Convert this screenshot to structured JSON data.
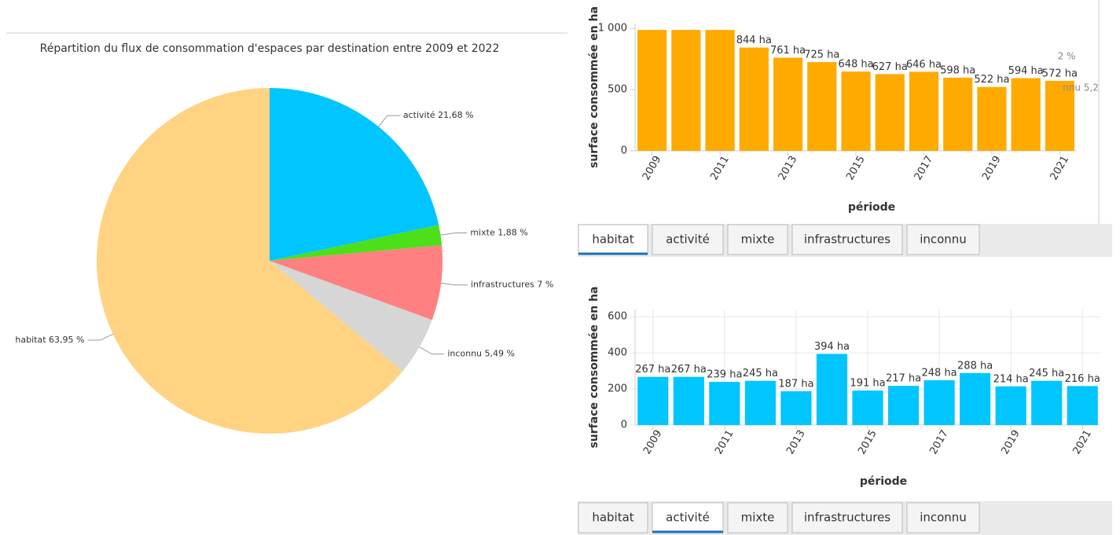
{
  "chart_data": [
    {
      "type": "pie",
      "title": "Répartition du flux de consommation d'espaces par destination entre 2009 et 2022",
      "categories": [
        "activité",
        "mixte",
        "infrastructures",
        "inconnu",
        "habitat"
      ],
      "values": [
        21.68,
        1.88,
        7,
        5.49,
        63.95
      ],
      "value_labels": [
        "21,68 %",
        "1,88 %",
        "7 %",
        "5,49 %",
        "63,95 %"
      ],
      "colors": [
        "#00c5ff",
        "#4ddf1a",
        "#ff8080",
        "#d6d6d6",
        "#ffd382"
      ]
    },
    {
      "type": "bar",
      "ylabel": "surface consommée en ha",
      "xlabel": "période",
      "categories": [
        "2009",
        null,
        "2011",
        null,
        "2013",
        null,
        "2015",
        null,
        "2017",
        null,
        "2019",
        null,
        "2021"
      ],
      "values": [
        988,
        988,
        988,
        844,
        761,
        725,
        648,
        627,
        646,
        598,
        522,
        594,
        572
      ],
      "value_labels": [
        null,
        null,
        null,
        "844 ha",
        "761 ha",
        "725 ha",
        "648 ha",
        "627 ha",
        "646 ha",
        "598 ha",
        "522 ha",
        "594 ha",
        "572 ha"
      ],
      "color": "#ffaa00",
      "ylim": [
        0,
        1040
      ],
      "yticks": [
        0,
        500,
        {
          "value": 1000,
          "label": "1 000"
        }
      ],
      "annotations": [
        "2 %",
        "nnu 5,2"
      ],
      "tabs": [
        "habitat",
        "activité",
        "mixte",
        "infrastructures",
        "inconnu"
      ],
      "active_tab": 0
    },
    {
      "type": "bar",
      "ylabel": "surface consommée en ha",
      "xlabel": "période",
      "categories": [
        "2009",
        null,
        "2011",
        null,
        "2013",
        null,
        "2015",
        null,
        "2017",
        null,
        "2019",
        null,
        "2021"
      ],
      "values": [
        267,
        267,
        239,
        245,
        187,
        394,
        191,
        217,
        248,
        288,
        214,
        245,
        216
      ],
      "value_labels": [
        "267 ha",
        "267 ha",
        "239 ha",
        "245 ha",
        "187 ha",
        "394 ha",
        "191 ha",
        "217 ha",
        "248 ha",
        "288 ha",
        "214 ha",
        "245 ha",
        "216 ha"
      ],
      "color": "#00c5ff",
      "ylim": [
        0,
        640
      ],
      "yticks": [
        0,
        200,
        400,
        600
      ],
      "grid": true,
      "tabs": [
        "habitat",
        "activité",
        "mixte",
        "infrastructures",
        "inconnu"
      ],
      "active_tab": 1
    }
  ]
}
